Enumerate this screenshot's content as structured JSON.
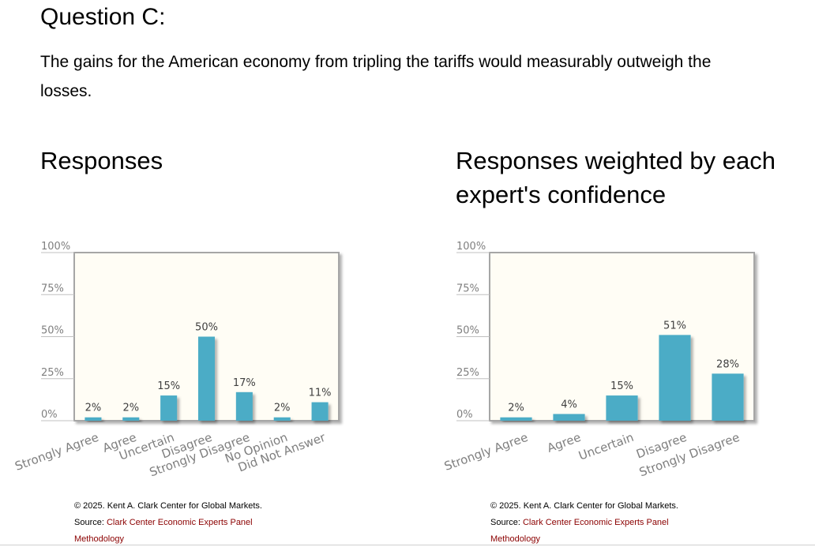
{
  "question": {
    "title": "Question C:",
    "text_line1": "The gains for the American economy from tripling the tariffs would measurably outweigh the",
    "text_line2": "losses."
  },
  "left_panel": {
    "heading": "Responses",
    "copyright": "© 2025. Kent A. Clark Center for Global Markets.",
    "source_label": "Source:",
    "source_link": "Clark Center Economic Experts Panel",
    "methodology_link": "Methodology"
  },
  "right_panel": {
    "heading_line1": "Responses weighted by each",
    "heading_line2": "expert's confidence",
    "copyright": "© 2025. Kent A. Clark Center for Global Markets.",
    "source_label": "Source:",
    "source_link": "Clark Center Economic Experts Panel",
    "methodology_link": "Methodology"
  },
  "colors": {
    "bar": "#4bacc6",
    "plot_bg": "#fffdf5",
    "frame": "#a6a6a6",
    "link": "#8b0000"
  },
  "chart_data": [
    {
      "type": "bar",
      "categories": [
        "Strongly Agree",
        "Agree",
        "Uncertain",
        "Disagree",
        "Strongly Disagree",
        "No Opinion",
        "Did Not Answer"
      ],
      "values": [
        2,
        2,
        15,
        50,
        17,
        2,
        11
      ],
      "value_labels": [
        "2%",
        "2%",
        "15%",
        "50%",
        "17%",
        "2%",
        "11%"
      ],
      "yticks": [
        "0%",
        "25%",
        "50%",
        "75%",
        "100%"
      ],
      "ylim": [
        0,
        100
      ],
      "grid": false
    },
    {
      "type": "bar",
      "categories": [
        "Strongly Agree",
        "Agree",
        "Uncertain",
        "Disagree",
        "Strongly Disagree"
      ],
      "values": [
        2,
        4,
        15,
        51,
        28
      ],
      "value_labels": [
        "2%",
        "4%",
        "15%",
        "51%",
        "28%"
      ],
      "yticks": [
        "0%",
        "25%",
        "50%",
        "75%",
        "100%"
      ],
      "ylim": [
        0,
        100
      ],
      "grid": false
    }
  ]
}
